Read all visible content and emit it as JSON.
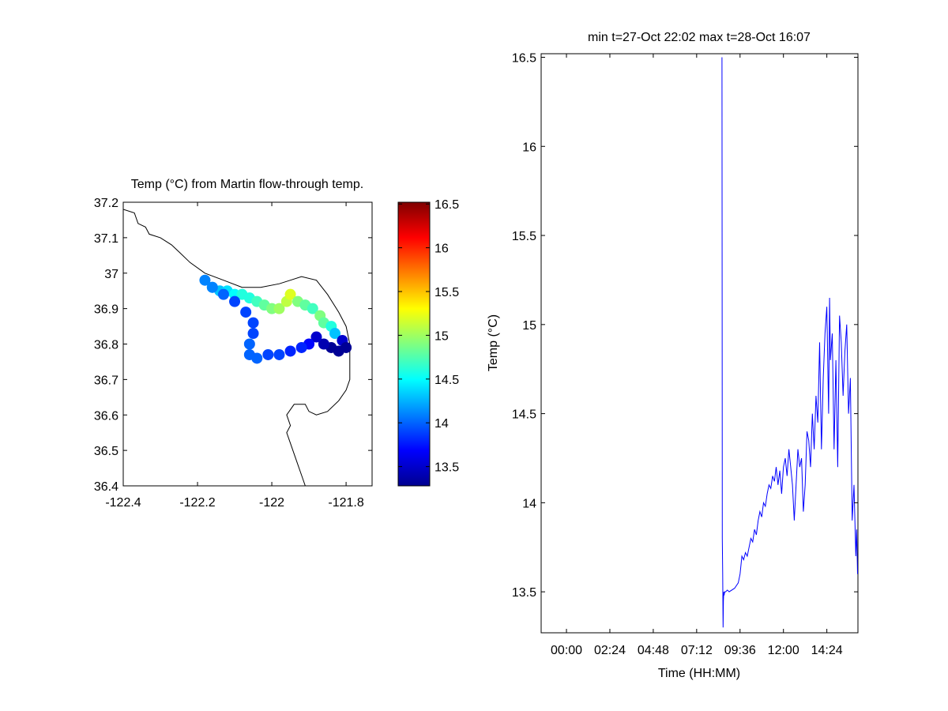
{
  "colors": {
    "background": "#ffffff",
    "axis": "#000000",
    "coastline": "#000000",
    "line_series": "#0000ff",
    "colormap": [
      "#00008f",
      "#0000ff",
      "#0080ff",
      "#00ffff",
      "#80ff80",
      "#ffff00",
      "#ff8000",
      "#ff0000",
      "#800000"
    ]
  },
  "chart_data": [
    {
      "type": "scatter",
      "title": "Temp (°C) from Martin flow-through temp.",
      "xlabel": "",
      "ylabel": "",
      "xlim": [
        -122.4,
        -121.73
      ],
      "ylim": [
        36.4,
        37.2
      ],
      "x_ticks": [
        -122.4,
        -122.2,
        -122.0,
        -121.8
      ],
      "x_tick_labels": [
        "-122.4",
        "-122.2",
        "-122",
        "-121.8"
      ],
      "y_ticks": [
        36.4,
        36.5,
        36.6,
        36.7,
        36.8,
        36.9,
        37.0,
        37.1,
        37.2
      ],
      "y_tick_labels": [
        "36.4",
        "36.5",
        "36.6",
        "36.7",
        "36.8",
        "36.9",
        "37",
        "37.1",
        "37.2"
      ],
      "grid": false,
      "coastline": [
        [
          -122.4,
          37.18
        ],
        [
          -122.37,
          37.17
        ],
        [
          -122.36,
          37.14
        ],
        [
          -122.34,
          37.13
        ],
        [
          -122.33,
          37.11
        ],
        [
          -122.3,
          37.1
        ],
        [
          -122.27,
          37.08
        ],
        [
          -122.25,
          37.06
        ],
        [
          -122.22,
          37.03
        ],
        [
          -122.18,
          37.0
        ],
        [
          -122.13,
          36.98
        ],
        [
          -122.08,
          36.96
        ],
        [
          -122.03,
          36.96
        ],
        [
          -121.98,
          36.97
        ],
        [
          -121.95,
          36.98
        ],
        [
          -121.92,
          36.99
        ],
        [
          -121.88,
          36.98
        ],
        [
          -121.85,
          36.94
        ],
        [
          -121.82,
          36.89
        ],
        [
          -121.8,
          36.85
        ],
        [
          -121.79,
          36.8
        ],
        [
          -121.79,
          36.75
        ],
        [
          -121.79,
          36.7
        ],
        [
          -121.8,
          36.67
        ],
        [
          -121.82,
          36.64
        ],
        [
          -121.85,
          36.61
        ],
        [
          -121.88,
          36.6
        ],
        [
          -121.9,
          36.61
        ],
        [
          -121.91,
          36.63
        ],
        [
          -121.94,
          36.63
        ],
        [
          -121.96,
          36.6
        ],
        [
          -121.95,
          36.57
        ],
        [
          -121.96,
          36.55
        ],
        [
          -121.95,
          36.52
        ],
        [
          -121.94,
          36.49
        ],
        [
          -121.93,
          36.46
        ],
        [
          -121.92,
          36.43
        ],
        [
          -121.91,
          36.4
        ]
      ],
      "points": [
        {
          "lon": -122.18,
          "lat": 36.98,
          "temp": 14.1
        },
        {
          "lon": -122.16,
          "lat": 36.96,
          "temp": 14.2
        },
        {
          "lon": -122.14,
          "lat": 36.95,
          "temp": 14.3
        },
        {
          "lon": -122.12,
          "lat": 36.95,
          "temp": 14.4
        },
        {
          "lon": -122.1,
          "lat": 36.94,
          "temp": 14.5
        },
        {
          "lon": -122.08,
          "lat": 36.94,
          "temp": 14.6
        },
        {
          "lon": -122.06,
          "lat": 36.93,
          "temp": 14.6
        },
        {
          "lon": -122.04,
          "lat": 36.92,
          "temp": 14.7
        },
        {
          "lon": -122.02,
          "lat": 36.91,
          "temp": 14.8
        },
        {
          "lon": -122.0,
          "lat": 36.9,
          "temp": 14.9
        },
        {
          "lon": -121.98,
          "lat": 36.9,
          "temp": 15.0
        },
        {
          "lon": -121.96,
          "lat": 36.92,
          "temp": 15.1
        },
        {
          "lon": -121.95,
          "lat": 36.94,
          "temp": 15.2
        },
        {
          "lon": -121.93,
          "lat": 36.92,
          "temp": 14.9
        },
        {
          "lon": -121.91,
          "lat": 36.91,
          "temp": 14.8
        },
        {
          "lon": -121.89,
          "lat": 36.9,
          "temp": 14.7
        },
        {
          "lon": -121.87,
          "lat": 36.88,
          "temp": 14.9
        },
        {
          "lon": -121.86,
          "lat": 36.86,
          "temp": 14.8
        },
        {
          "lon": -121.84,
          "lat": 36.85,
          "temp": 14.6
        },
        {
          "lon": -121.83,
          "lat": 36.83,
          "temp": 14.3
        },
        {
          "lon": -121.81,
          "lat": 36.81,
          "temp": 13.5
        },
        {
          "lon": -121.8,
          "lat": 36.79,
          "temp": 13.3
        },
        {
          "lon": -121.82,
          "lat": 36.78,
          "temp": 13.3
        },
        {
          "lon": -121.84,
          "lat": 36.79,
          "temp": 13.3
        },
        {
          "lon": -121.86,
          "lat": 36.8,
          "temp": 13.4
        },
        {
          "lon": -121.88,
          "lat": 36.82,
          "temp": 13.5
        },
        {
          "lon": -121.9,
          "lat": 36.8,
          "temp": 13.7
        },
        {
          "lon": -121.92,
          "lat": 36.79,
          "temp": 13.8
        },
        {
          "lon": -121.95,
          "lat": 36.78,
          "temp": 13.8
        },
        {
          "lon": -121.98,
          "lat": 36.77,
          "temp": 13.9
        },
        {
          "lon": -122.01,
          "lat": 36.77,
          "temp": 13.9
        },
        {
          "lon": -122.04,
          "lat": 36.76,
          "temp": 14.0
        },
        {
          "lon": -122.06,
          "lat": 36.77,
          "temp": 14.0
        },
        {
          "lon": -122.06,
          "lat": 36.8,
          "temp": 14.0
        },
        {
          "lon": -122.05,
          "lat": 36.83,
          "temp": 13.9
        },
        {
          "lon": -122.05,
          "lat": 36.86,
          "temp": 13.9
        },
        {
          "lon": -122.07,
          "lat": 36.89,
          "temp": 13.9
        },
        {
          "lon": -122.1,
          "lat": 36.92,
          "temp": 13.9
        },
        {
          "lon": -122.13,
          "lat": 36.94,
          "temp": 14.0
        },
        {
          "lon": -122.16,
          "lat": 36.96,
          "temp": 14.1
        }
      ],
      "colorbar": {
        "clim": [
          13.28,
          16.52
        ],
        "ticks": [
          13.5,
          14,
          14.5,
          15,
          15.5,
          16,
          16.5
        ],
        "tick_labels": [
          "13.5",
          "14",
          "14.5",
          "15",
          "15.5",
          "16",
          "16.5"
        ]
      }
    },
    {
      "type": "line",
      "title": "min t=27-Oct 22:02 max t=28-Oct 16:07",
      "xlabel": "Time (HH:MM)",
      "ylabel": "Temp (°C)",
      "x_unit": "hours",
      "xlim": [
        -1.4,
        16.12
      ],
      "ylim": [
        13.27,
        16.52
      ],
      "x_ticks": [
        0,
        2.4,
        4.8,
        7.2,
        9.6,
        12.0,
        14.4
      ],
      "x_tick_labels": [
        "00:00",
        "02:24",
        "04:48",
        "07:12",
        "09:36",
        "12:00",
        "14:24"
      ],
      "y_ticks": [
        13.5,
        14,
        14.5,
        15,
        15.5,
        16,
        16.5
      ],
      "y_tick_labels": [
        "13.5",
        "14",
        "14.5",
        "15",
        "15.5",
        "16",
        "16.5"
      ],
      "grid": false,
      "series": [
        {
          "name": "",
          "x": [
            8.6,
            8.61,
            8.62,
            8.64,
            8.66,
            8.68,
            8.7,
            8.72,
            8.75,
            8.8,
            8.9,
            9.0,
            9.3,
            9.5,
            9.6,
            9.7,
            9.8,
            9.9,
            10.0,
            10.1,
            10.2,
            10.3,
            10.4,
            10.5,
            10.6,
            10.7,
            10.8,
            10.9,
            11.0,
            11.1,
            11.2,
            11.3,
            11.4,
            11.5,
            11.6,
            11.7,
            11.8,
            11.9,
            12.0,
            12.1,
            12.2,
            12.3,
            12.4,
            12.5,
            12.6,
            12.7,
            12.8,
            12.9,
            13.0,
            13.1,
            13.2,
            13.3,
            13.4,
            13.5,
            13.6,
            13.7,
            13.8,
            13.9,
            14.0,
            14.1,
            14.2,
            14.3,
            14.4,
            14.5,
            14.55,
            14.6,
            14.7,
            14.8,
            14.9,
            15.0,
            15.1,
            15.2,
            15.3,
            15.4,
            15.5,
            15.6,
            15.7,
            15.8,
            15.9,
            16.0,
            16.05,
            16.1
          ],
          "y": [
            16.5,
            15.25,
            13.8,
            13.6,
            13.3,
            13.45,
            13.5,
            13.48,
            13.5,
            13.5,
            13.51,
            13.5,
            13.52,
            13.55,
            13.6,
            13.7,
            13.68,
            13.72,
            13.7,
            13.75,
            13.8,
            13.78,
            13.85,
            13.82,
            13.9,
            13.95,
            13.92,
            14.0,
            13.98,
            14.05,
            14.1,
            14.08,
            14.15,
            14.12,
            14.2,
            14.1,
            14.18,
            14.05,
            14.2,
            14.25,
            14.15,
            14.3,
            14.2,
            14.1,
            13.9,
            14.1,
            14.3,
            14.2,
            14.25,
            13.95,
            14.1,
            14.4,
            14.35,
            14.2,
            14.5,
            14.3,
            14.6,
            14.45,
            14.9,
            14.3,
            14.7,
            14.95,
            15.1,
            14.5,
            15.15,
            14.8,
            14.95,
            14.3,
            14.8,
            14.2,
            15.05,
            14.9,
            14.6,
            14.85,
            15.0,
            14.5,
            14.7,
            13.9,
            14.1,
            13.7,
            13.85,
            13.6
          ]
        }
      ]
    }
  ]
}
